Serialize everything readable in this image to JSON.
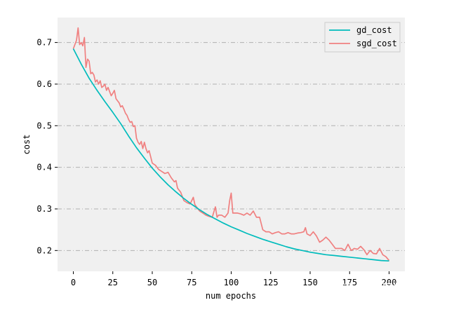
{
  "chart_data": {
    "type": "line",
    "xlabel": "num epochs",
    "ylabel": "cost",
    "xlim": [
      -10,
      210
    ],
    "ylim": [
      0.15,
      0.76
    ],
    "x_ticks": [
      0,
      25,
      50,
      75,
      100,
      125,
      150,
      175,
      200
    ],
    "y_ticks": [
      0.2,
      0.3,
      0.4,
      0.5,
      0.6,
      0.7
    ],
    "grid": "horizontal dash-dot",
    "legend_position": "top-right",
    "background": "#f0f0f0",
    "series": [
      {
        "name": "gd_cost",
        "color": "#00bcbc",
        "x": [
          0,
          5,
          10,
          15,
          20,
          25,
          30,
          35,
          40,
          45,
          50,
          55,
          60,
          65,
          70,
          75,
          80,
          85,
          90,
          95,
          100,
          105,
          110,
          115,
          120,
          125,
          130,
          135,
          140,
          145,
          150,
          155,
          160,
          165,
          170,
          175,
          180,
          185,
          190,
          195,
          200
        ],
        "y": [
          0.685,
          0.648,
          0.614,
          0.585,
          0.558,
          0.532,
          0.505,
          0.475,
          0.447,
          0.422,
          0.398,
          0.377,
          0.358,
          0.341,
          0.325,
          0.311,
          0.298,
          0.286,
          0.276,
          0.266,
          0.257,
          0.249,
          0.241,
          0.234,
          0.227,
          0.221,
          0.215,
          0.209,
          0.204,
          0.2,
          0.196,
          0.193,
          0.19,
          0.188,
          0.186,
          0.184,
          0.182,
          0.18,
          0.178,
          0.176,
          0.175
        ]
      },
      {
        "name": "sgd_cost",
        "color": "#f08080",
        "x": [
          0,
          2,
          3,
          4,
          5,
          6,
          7,
          8,
          9,
          10,
          11,
          12,
          13,
          14,
          15,
          16,
          17,
          18,
          19,
          20,
          21,
          22,
          24,
          25,
          26,
          27,
          28,
          29,
          30,
          31,
          32,
          33,
          34,
          35,
          36,
          37,
          38,
          39,
          40,
          41,
          42,
          43,
          44,
          45,
          46,
          47,
          48,
          49,
          50,
          52,
          54,
          56,
          58,
          60,
          62,
          64,
          65,
          66,
          68,
          70,
          72,
          74,
          76,
          77,
          78,
          80,
          82,
          84,
          86,
          88,
          89,
          90,
          91,
          92,
          94,
          96,
          98,
          99,
          100,
          101,
          102,
          104,
          106,
          108,
          110,
          112,
          114,
          116,
          118,
          120,
          122,
          124,
          126,
          128,
          130,
          132,
          134,
          136,
          138,
          140,
          142,
          144,
          146,
          147,
          148,
          150,
          152,
          154,
          156,
          158,
          160,
          162,
          164,
          166,
          168,
          170,
          172,
          174,
          176,
          178,
          180,
          182,
          184,
          186,
          188,
          190,
          192,
          194,
          196,
          198,
          200
        ],
        "y": [
          0.685,
          0.705,
          0.735,
          0.695,
          0.7,
          0.692,
          0.712,
          0.64,
          0.66,
          0.655,
          0.625,
          0.628,
          0.622,
          0.605,
          0.61,
          0.6,
          0.608,
          0.592,
          0.595,
          0.6,
          0.585,
          0.592,
          0.572,
          0.578,
          0.585,
          0.565,
          0.56,
          0.555,
          0.545,
          0.548,
          0.54,
          0.53,
          0.525,
          0.515,
          0.508,
          0.51,
          0.498,
          0.5,
          0.47,
          0.46,
          0.455,
          0.462,
          0.445,
          0.46,
          0.445,
          0.435,
          0.44,
          0.425,
          0.41,
          0.405,
          0.395,
          0.39,
          0.385,
          0.388,
          0.375,
          0.365,
          0.368,
          0.35,
          0.34,
          0.32,
          0.315,
          0.312,
          0.328,
          0.31,
          0.305,
          0.295,
          0.29,
          0.285,
          0.282,
          0.28,
          0.293,
          0.305,
          0.28,
          0.285,
          0.285,
          0.28,
          0.29,
          0.32,
          0.338,
          0.29,
          0.29,
          0.29,
          0.288,
          0.285,
          0.29,
          0.285,
          0.295,
          0.28,
          0.28,
          0.25,
          0.245,
          0.245,
          0.24,
          0.243,
          0.245,
          0.24,
          0.24,
          0.243,
          0.24,
          0.24,
          0.242,
          0.243,
          0.245,
          0.255,
          0.24,
          0.236,
          0.245,
          0.235,
          0.22,
          0.225,
          0.232,
          0.225,
          0.215,
          0.205,
          0.205,
          0.205,
          0.2,
          0.215,
          0.2,
          0.205,
          0.203,
          0.21,
          0.202,
          0.19,
          0.2,
          0.193,
          0.192,
          0.205,
          0.19,
          0.185,
          0.176
        ]
      }
    ]
  },
  "watermark": "知乎 @我是韩小琦"
}
